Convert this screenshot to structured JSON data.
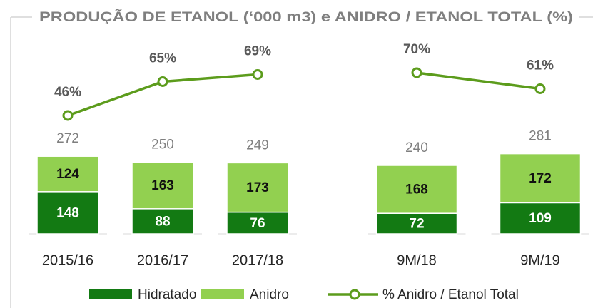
{
  "chart_data": {
    "type": "bar",
    "stacked": true,
    "title": "PRODUÇÃO DE ETANOL (‘000 m3) e ANIDRO / ETANOL TOTAL (%)",
    "categories": [
      "2015/16",
      "2016/17",
      "2017/18",
      null,
      "9M/18",
      "9M/19"
    ],
    "series": [
      {
        "name": "Hidratado",
        "color": "#137a13",
        "values": [
          148,
          88,
          76,
          null,
          72,
          109
        ]
      },
      {
        "name": "Anidro",
        "color": "#92d050",
        "values": [
          124,
          163,
          173,
          null,
          168,
          172
        ]
      },
      {
        "name": "% Anidro / Etanol Total",
        "type": "line",
        "axis": "y2",
        "color": "#5c9c1c",
        "values": [
          46,
          65,
          69,
          null,
          70,
          61
        ],
        "value_labels": [
          "46%",
          "65%",
          "69%",
          null,
          "70%",
          "61%"
        ]
      }
    ],
    "totals": [
      272,
      250,
      249,
      null,
      240,
      281
    ]
  }
}
